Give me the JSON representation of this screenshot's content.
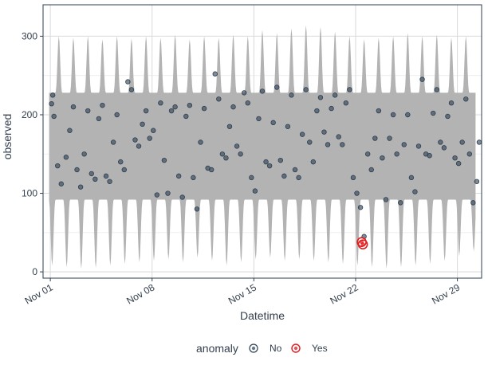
{
  "chart_data": {
    "type": "scatter",
    "title": "",
    "xlabel": "Datetime",
    "ylabel": "observed",
    "x_type": "date",
    "xlim": [
      "2016-10-31T12:00",
      "2016-11-30T16:00"
    ],
    "ylim": [
      -8,
      340
    ],
    "x_ticks": [
      {
        "date": "2016-11-01",
        "label": "Nov 01"
      },
      {
        "date": "2016-11-08",
        "label": "Nov 08"
      },
      {
        "date": "2016-11-15",
        "label": "Nov 15"
      },
      {
        "date": "2016-11-22",
        "label": "Nov 22"
      },
      {
        "date": "2016-11-29",
        "label": "Nov 29"
      }
    ],
    "y_ticks": [
      0,
      100,
      200,
      300
    ],
    "grid": true,
    "legend_position": "bottom",
    "colors": {
      "band": "#b3b3b3",
      "normal": "#2c3e50",
      "anomaly": "#e31a1c",
      "grid": "#d9d9d9",
      "panel_border": "#2c3e50",
      "text": "#333f4d"
    },
    "band": {
      "description_only": false,
      "daily_high_peak": [
        300,
        298,
        300,
        296,
        300,
        297,
        300,
        298,
        302,
        296,
        300,
        298,
        302,
        300,
        308,
        304,
        310,
        314,
        312,
        306,
        300,
        296,
        298,
        300,
        304,
        300,
        302,
        298,
        300,
        282
      ],
      "daily_low_trough": [
        8,
        6,
        4,
        5,
        8,
        10,
        12,
        14,
        16,
        12,
        18,
        14,
        8,
        12,
        16,
        18,
        14,
        16,
        14,
        12,
        10,
        8,
        6,
        4,
        6,
        8,
        10,
        14,
        20,
        26
      ]
    },
    "series": [
      {
        "name": "No",
        "points": [
          [
            "2016-11-01T02:00",
            214
          ],
          [
            "2016-11-01T04:00",
            225
          ],
          [
            "2016-11-01T06:00",
            198
          ],
          [
            "2016-11-01T12:00",
            135
          ],
          [
            "2016-11-01T18:00",
            112
          ],
          [
            "2016-11-02T02:00",
            146
          ],
          [
            "2016-11-02T08:00",
            180
          ],
          [
            "2016-11-02T14:00",
            210
          ],
          [
            "2016-11-02T20:00",
            130
          ],
          [
            "2016-11-03T02:00",
            108
          ],
          [
            "2016-11-03T08:00",
            150
          ],
          [
            "2016-11-03T14:00",
            205
          ],
          [
            "2016-11-03T20:00",
            125
          ],
          [
            "2016-11-04T02:00",
            118
          ],
          [
            "2016-11-04T08:00",
            195
          ],
          [
            "2016-11-04T14:00",
            212
          ],
          [
            "2016-11-04T20:00",
            122
          ],
          [
            "2016-11-05T02:00",
            115
          ],
          [
            "2016-11-05T08:00",
            165
          ],
          [
            "2016-11-05T14:00",
            200
          ],
          [
            "2016-11-05T20:00",
            140
          ],
          [
            "2016-11-06T02:00",
            130
          ],
          [
            "2016-11-06T08:00",
            242
          ],
          [
            "2016-11-06T14:00",
            232
          ],
          [
            "2016-11-06T20:00",
            168
          ],
          [
            "2016-11-07T02:00",
            160
          ],
          [
            "2016-11-07T08:00",
            188
          ],
          [
            "2016-11-07T14:00",
            205
          ],
          [
            "2016-11-07T20:00",
            170
          ],
          [
            "2016-11-08T02:00",
            180
          ],
          [
            "2016-11-08T08:00",
            98
          ],
          [
            "2016-11-08T14:00",
            215
          ],
          [
            "2016-11-08T20:00",
            142
          ],
          [
            "2016-11-09T02:00",
            100
          ],
          [
            "2016-11-09T08:00",
            205
          ],
          [
            "2016-11-09T14:00",
            210
          ],
          [
            "2016-11-09T20:00",
            122
          ],
          [
            "2016-11-10T02:00",
            95
          ],
          [
            "2016-11-10T08:00",
            198
          ],
          [
            "2016-11-10T14:00",
            212
          ],
          [
            "2016-11-10T20:00",
            120
          ],
          [
            "2016-11-11T02:00",
            80
          ],
          [
            "2016-11-11T08:00",
            165
          ],
          [
            "2016-11-11T14:00",
            208
          ],
          [
            "2016-11-11T20:00",
            132
          ],
          [
            "2016-11-12T02:00",
            130
          ],
          [
            "2016-11-12T08:00",
            252
          ],
          [
            "2016-11-12T14:00",
            220
          ],
          [
            "2016-11-12T20:00",
            150
          ],
          [
            "2016-11-13T02:00",
            145
          ],
          [
            "2016-11-13T08:00",
            185
          ],
          [
            "2016-11-13T14:00",
            210
          ],
          [
            "2016-11-13T20:00",
            160
          ],
          [
            "2016-11-14T02:00",
            150
          ],
          [
            "2016-11-14T08:00",
            228
          ],
          [
            "2016-11-14T14:00",
            215
          ],
          [
            "2016-11-14T20:00",
            120
          ],
          [
            "2016-11-15T02:00",
            103
          ],
          [
            "2016-11-15T08:00",
            195
          ],
          [
            "2016-11-15T14:00",
            230
          ],
          [
            "2016-11-15T20:00",
            140
          ],
          [
            "2016-11-16T02:00",
            135
          ],
          [
            "2016-11-16T08:00",
            190
          ],
          [
            "2016-11-16T14:00",
            235
          ],
          [
            "2016-11-16T20:00",
            142
          ],
          [
            "2016-11-17T02:00",
            122
          ],
          [
            "2016-11-17T08:00",
            185
          ],
          [
            "2016-11-17T14:00",
            225
          ],
          [
            "2016-11-17T20:00",
            130
          ],
          [
            "2016-11-18T02:00",
            120
          ],
          [
            "2016-11-18T08:00",
            175
          ],
          [
            "2016-11-18T14:00",
            232
          ],
          [
            "2016-11-18T20:00",
            165
          ],
          [
            "2016-11-19T02:00",
            140
          ],
          [
            "2016-11-19T08:00",
            205
          ],
          [
            "2016-11-19T14:00",
            222
          ],
          [
            "2016-11-19T20:00",
            178
          ],
          [
            "2016-11-20T02:00",
            162
          ],
          [
            "2016-11-20T08:00",
            208
          ],
          [
            "2016-11-20T14:00",
            225
          ],
          [
            "2016-11-20T20:00",
            172
          ],
          [
            "2016-11-21T02:00",
            162
          ],
          [
            "2016-11-21T08:00",
            215
          ],
          [
            "2016-11-21T14:00",
            232
          ],
          [
            "2016-11-21T20:00",
            120
          ],
          [
            "2016-11-22T02:00",
            100
          ],
          [
            "2016-11-22T08:00",
            82
          ],
          [
            "2016-11-22T14:00",
            45
          ],
          [
            "2016-11-22T20:00",
            150
          ],
          [
            "2016-11-23T02:00",
            130
          ],
          [
            "2016-11-23T08:00",
            170
          ],
          [
            "2016-11-23T14:00",
            205
          ],
          [
            "2016-11-23T20:00",
            145
          ],
          [
            "2016-11-24T02:00",
            92
          ],
          [
            "2016-11-24T08:00",
            170
          ],
          [
            "2016-11-24T14:00",
            200
          ],
          [
            "2016-11-24T20:00",
            150
          ],
          [
            "2016-11-25T02:00",
            88
          ],
          [
            "2016-11-25T08:00",
            162
          ],
          [
            "2016-11-25T14:00",
            200
          ],
          [
            "2016-11-25T20:00",
            120
          ],
          [
            "2016-11-26T02:00",
            102
          ],
          [
            "2016-11-26T08:00",
            160
          ],
          [
            "2016-11-26T14:00",
            245
          ],
          [
            "2016-11-26T20:00",
            150
          ],
          [
            "2016-11-27T02:00",
            148
          ],
          [
            "2016-11-27T08:00",
            202
          ],
          [
            "2016-11-27T14:00",
            232
          ],
          [
            "2016-11-27T20:00",
            165
          ],
          [
            "2016-11-28T02:00",
            158
          ],
          [
            "2016-11-28T08:00",
            198
          ],
          [
            "2016-11-28T14:00",
            215
          ],
          [
            "2016-11-28T20:00",
            145
          ],
          [
            "2016-11-29T02:00",
            138
          ],
          [
            "2016-11-29T08:00",
            165
          ],
          [
            "2016-11-29T14:00",
            220
          ],
          [
            "2016-11-29T20:00",
            150
          ],
          [
            "2016-11-30T02:00",
            88
          ],
          [
            "2016-11-30T08:00",
            115
          ],
          [
            "2016-11-30T12:00",
            165
          ]
        ]
      },
      {
        "name": "Yes",
        "points": [
          [
            "2016-11-22T10:00",
            38
          ],
          [
            "2016-11-22T12:00",
            35
          ]
        ]
      }
    ],
    "legend": {
      "title": "anomaly",
      "items": [
        {
          "label": "No",
          "color": "#2c3e50"
        },
        {
          "label": "Yes",
          "color": "#e31a1c"
        }
      ]
    }
  }
}
